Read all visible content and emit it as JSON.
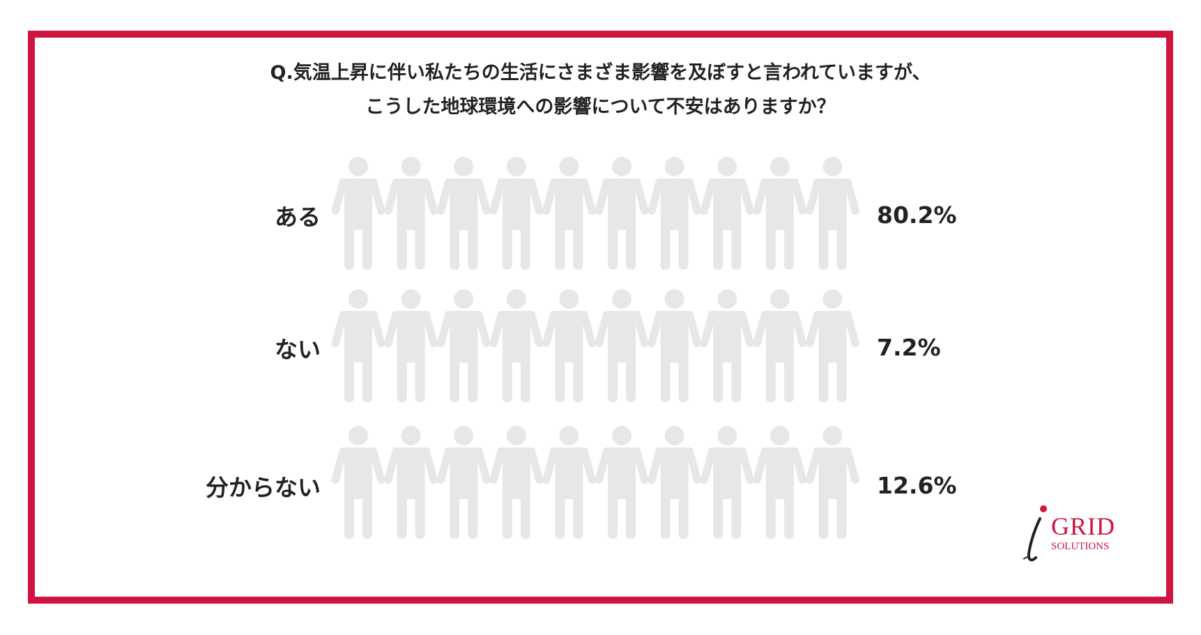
{
  "question_lines": [
    "Q.気温上昇に伴い私たちの生活にさまざま影響を及ぼすと言われていますが、",
    "こうした地球環境への影響について不安はありますか？"
  ],
  "colors": {
    "frame": "#d0143f",
    "filled": "#c8103f",
    "empty": "#e6e7e6",
    "text": "#222222"
  },
  "chart_data": {
    "type": "pictogram",
    "icons_per_row": 10,
    "categories": [
      "ある",
      "ない",
      "分からない"
    ],
    "values": [
      80.2,
      7.2,
      12.6
    ],
    "value_labels": [
      "80.2%",
      "7.2%",
      "12.6%"
    ]
  },
  "logo": {
    "icon": "i-letter-logo-icon",
    "word": "GRID",
    "sub": "SOLUTIONS"
  }
}
